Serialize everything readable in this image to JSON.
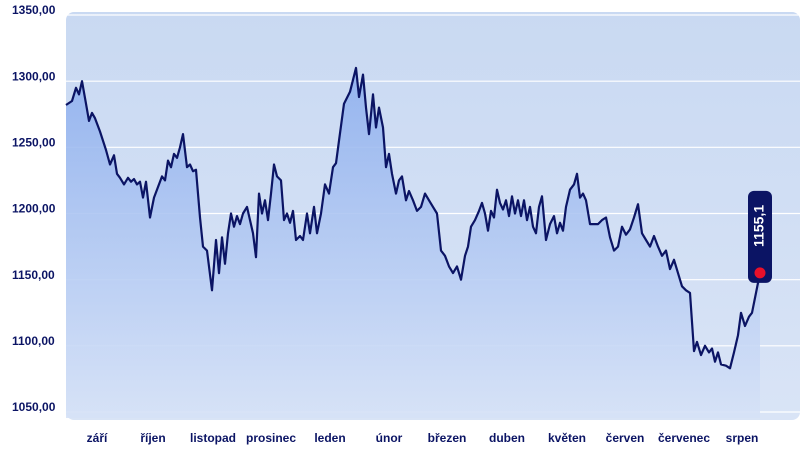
{
  "chart_data": {
    "type": "line",
    "x": [
      0,
      6,
      10,
      13,
      16,
      20,
      23,
      26,
      29,
      34,
      40,
      44,
      48,
      51,
      54,
      58,
      62,
      65,
      68,
      71,
      74,
      77,
      80,
      84,
      88,
      92,
      96,
      99,
      102,
      105,
      108,
      111,
      114,
      117,
      121,
      124,
      127,
      130,
      134,
      137,
      141,
      146,
      150,
      153,
      156,
      159,
      162,
      165,
      168,
      171,
      174,
      177,
      181,
      184,
      187,
      190,
      193,
      196,
      199,
      202,
      205,
      208,
      211,
      215,
      218,
      221,
      224,
      227,
      230,
      234,
      237,
      241,
      244,
      248,
      251,
      255,
      259,
      263,
      267,
      270,
      273,
      278,
      284,
      290,
      293,
      297,
      300,
      303,
      307,
      310,
      313,
      317,
      320,
      323,
      326,
      330,
      333,
      336,
      340,
      343,
      347,
      351,
      355,
      359,
      363,
      367,
      371,
      375,
      379,
      383,
      387,
      391,
      395,
      399,
      402,
      405,
      409,
      413,
      416,
      419,
      422,
      425,
      428,
      431,
      434,
      437,
      440,
      443,
      446,
      449,
      452,
      455,
      458,
      461,
      464,
      467,
      470,
      473,
      476,
      480,
      484,
      488,
      491,
      494,
      497,
      500,
      504,
      508,
      511,
      514,
      517,
      520,
      524,
      528,
      532,
      536,
      540,
      544,
      548,
      552,
      556,
      560,
      564,
      568,
      572,
      576,
      580,
      584,
      588,
      592,
      596,
      600,
      604,
      608,
      612,
      616,
      620,
      624,
      628,
      631,
      635,
      639,
      643,
      646,
      649,
      652,
      655,
      660,
      664,
      668,
      672,
      675,
      679,
      683,
      686,
      690,
      694
    ],
    "series": [
      {
        "color": "#0b1464",
        "values": [
          1282,
          1285,
          1295,
          1290,
          1300,
          1283,
          1270,
          1276,
          1272,
          1262,
          1248,
          1237,
          1244,
          1230,
          1227,
          1222,
          1227,
          1224,
          1226,
          1222,
          1224,
          1212,
          1224,
          1197,
          1212,
          1220,
          1228,
          1225,
          1240,
          1235,
          1245,
          1242,
          1250,
          1260,
          1235,
          1237,
          1232,
          1233,
          1197,
          1175,
          1172,
          1142,
          1180,
          1155,
          1182,
          1162,
          1185,
          1200,
          1190,
          1198,
          1192,
          1200,
          1205,
          1195,
          1185,
          1167,
          1215,
          1200,
          1210,
          1195,
          1215,
          1237,
          1228,
          1225,
          1195,
          1200,
          1193,
          1202,
          1180,
          1183,
          1180,
          1200,
          1185,
          1205,
          1185,
          1200,
          1222,
          1215,
          1235,
          1238,
          1255,
          1283,
          1292,
          1310,
          1288,
          1305,
          1280,
          1260,
          1290,
          1265,
          1280,
          1265,
          1235,
          1245,
          1230,
          1215,
          1225,
          1228,
          1210,
          1217,
          1210,
          1202,
          1205,
          1215,
          1210,
          1205,
          1200,
          1172,
          1168,
          1160,
          1155,
          1160,
          1150,
          1168,
          1175,
          1190,
          1195,
          1202,
          1208,
          1200,
          1187,
          1202,
          1197,
          1218,
          1208,
          1203,
          1210,
          1198,
          1213,
          1200,
          1210,
          1198,
          1210,
          1195,
          1205,
          1190,
          1185,
          1205,
          1213,
          1180,
          1192,
          1198,
          1185,
          1193,
          1187,
          1205,
          1218,
          1222,
          1230,
          1212,
          1215,
          1210,
          1192,
          1192,
          1192,
          1195,
          1197,
          1182,
          1172,
          1175,
          1190,
          1184,
          1188,
          1197,
          1207,
          1185,
          1180,
          1175,
          1183,
          1175,
          1168,
          1172,
          1158,
          1165,
          1155,
          1145,
          1142,
          1140,
          1096,
          1103,
          1093,
          1100,
          1095,
          1098,
          1088,
          1095,
          1086,
          1085,
          1083,
          1095,
          1108,
          1125,
          1115,
          1122,
          1125,
          1140,
          1155.1
        ]
      }
    ],
    "end_label": "1155,1",
    "xlim": [
      0,
      734
    ],
    "xticks": [
      {
        "value": 31,
        "label": "září"
      },
      {
        "value": 87,
        "label": "říjen"
      },
      {
        "value": 147,
        "label": "listopad"
      },
      {
        "value": 205,
        "label": "prosinec"
      },
      {
        "value": 264,
        "label": "leden"
      },
      {
        "value": 323,
        "label": "únor"
      },
      {
        "value": 381,
        "label": "březen"
      },
      {
        "value": 441,
        "label": "duben"
      },
      {
        "value": 501,
        "label": "květen"
      },
      {
        "value": 559,
        "label": "červen"
      },
      {
        "value": 618,
        "label": "červenec"
      },
      {
        "value": 676,
        "label": "srpen"
      }
    ],
    "ylim": [
      1050,
      1350
    ],
    "yticks": [
      {
        "value": 1050,
        "label": "1050,00"
      },
      {
        "value": 1100,
        "label": "1100,00"
      },
      {
        "value": 1150,
        "label": "1150,00"
      },
      {
        "value": 1200,
        "label": "1200,00"
      },
      {
        "value": 1250,
        "label": "1250,00"
      },
      {
        "value": 1300,
        "label": "1300,00"
      },
      {
        "value": 1350,
        "label": "1350,00"
      }
    ],
    "grid": true
  }
}
